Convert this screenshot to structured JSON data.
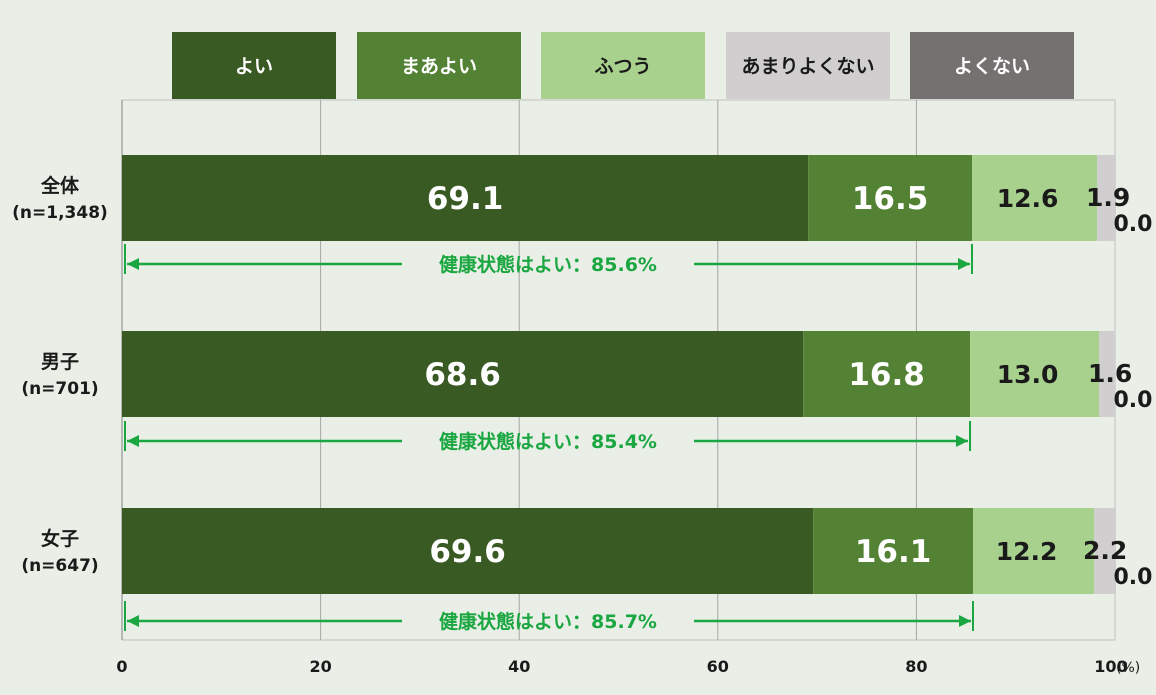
{
  "chart_data": {
    "type": "bar",
    "orientation": "horizontal",
    "stacked": true,
    "legend_position": "top",
    "categories": [
      {
        "line1": "全体",
        "line2": "(n=1,348)"
      },
      {
        "line1": "男子",
        "line2": "(n=701)"
      },
      {
        "line1": "女子",
        "line2": "(n=647)"
      }
    ],
    "series": [
      {
        "name": "よい",
        "color": "#3a5a23",
        "values": [
          69.1,
          68.6,
          69.6
        ]
      },
      {
        "name": "まあよい",
        "color": "#548235",
        "values": [
          16.5,
          16.8,
          16.1
        ]
      },
      {
        "name": "ふつう",
        "color": "#a9d18e",
        "values": [
          12.6,
          13.0,
          12.2
        ]
      },
      {
        "name": "あまりよくない",
        "color": "#d0cece",
        "values": [
          1.9,
          1.6,
          2.2
        ]
      },
      {
        "name": "よくない",
        "color": "#767171",
        "values": [
          0.0,
          0.0,
          0.0
        ]
      }
    ],
    "value_labels": [
      [
        "69.1",
        "16.5",
        "12.6",
        "1.9",
        "0.0"
      ],
      [
        "68.6",
        "16.8",
        "13.0",
        "1.6",
        "0.0"
      ],
      [
        "69.6",
        "16.1",
        "12.2",
        "2.2",
        "0.0"
      ]
    ],
    "annotations": [
      {
        "text": "健康状態はよい：85.6%",
        "value": 85.6
      },
      {
        "text": "健康状態はよい：85.4%",
        "value": 85.4
      },
      {
        "text": "健康状態はよい：85.7%",
        "value": 85.7
      }
    ],
    "annotation_color": "#1aa640",
    "xlim": [
      0,
      100
    ],
    "xticks": [
      "0",
      "20",
      "40",
      "60",
      "80",
      "100"
    ],
    "xunit": "(%)",
    "grid": true
  }
}
